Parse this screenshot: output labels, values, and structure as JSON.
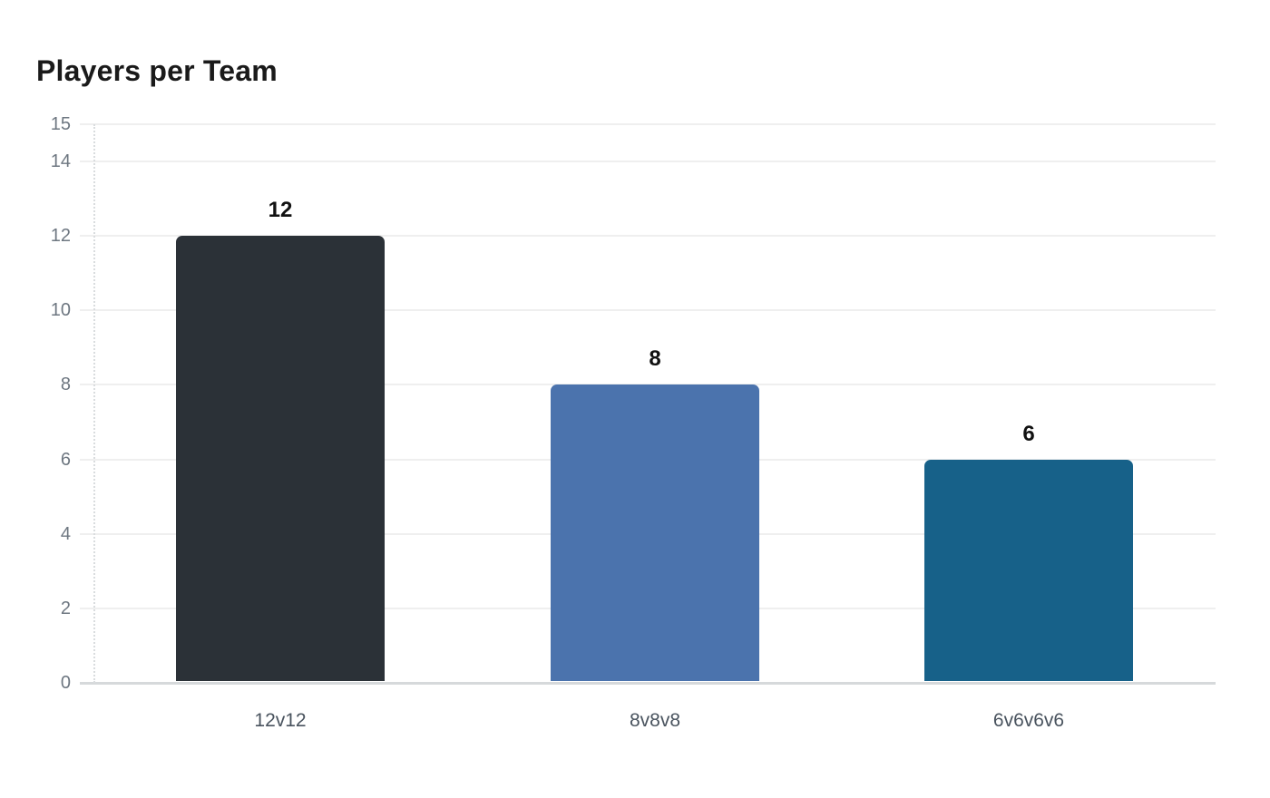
{
  "chart_data": {
    "type": "bar",
    "title": "Players per Team",
    "categories": [
      "12v12",
      "8v8v8",
      "6v6v6v6"
    ],
    "values": [
      12,
      8,
      6
    ],
    "value_labels": [
      "12",
      "8",
      "6"
    ],
    "bar_colors": [
      "#2b3137",
      "#4b73ad",
      "#176189"
    ],
    "yticks": [
      0,
      2,
      4,
      6,
      8,
      10,
      12,
      14,
      15
    ],
    "ylim": [
      0,
      15
    ],
    "xlabel": "",
    "ylabel": "",
    "grid": true,
    "legend": false,
    "appearance": {
      "background": "#ffffff",
      "title_color": "#1a1a1a",
      "tick_label_color": "#6e7781",
      "category_label_color": "#49535e",
      "value_label_color": "#111111",
      "gridline_color": "#efefef",
      "baseline_color": "#d6d9db",
      "axis_line_color": "#d9dcde"
    }
  }
}
